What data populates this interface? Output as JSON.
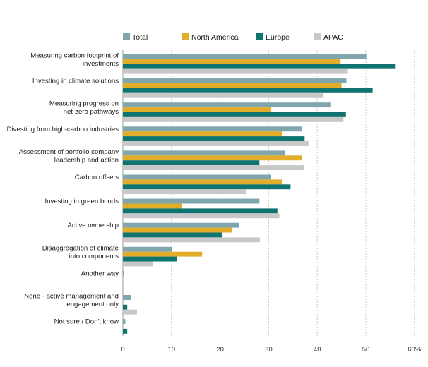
{
  "chart_data": {
    "type": "bar",
    "orientation": "horizontal",
    "title": "",
    "xlabel": "",
    "ylabel": "",
    "xlim": [
      0,
      60
    ],
    "x_ticks": [
      "0",
      "10",
      "20",
      "30",
      "40",
      "50",
      "60%"
    ],
    "grid": true,
    "legend_position": "top",
    "categories": [
      [
        "Measuring carbon footprint of",
        "investments"
      ],
      [
        "Investing in climate solutions"
      ],
      [
        "Measuring progress on",
        "net-zero pathways"
      ],
      [
        "Divesting from high-carbon industries"
      ],
      [
        "Assessment of portfolio company",
        "leadership and action"
      ],
      [
        "Carbon offsets"
      ],
      [
        "Investing in green bonds"
      ],
      [
        "Active ownership"
      ],
      [
        "Disaggregation of climate",
        "into components"
      ],
      [
        "Another way"
      ],
      [
        "None - active management and",
        "engagement only"
      ],
      [
        "Not sure / Don't know"
      ]
    ],
    "series": [
      {
        "name": "Total",
        "color": "#7fa5ad",
        "values": [
          50.1,
          46.0,
          42.7,
          36.9,
          33.3,
          30.5,
          28.1,
          23.9,
          10.1,
          0.2,
          1.7,
          0.5
        ]
      },
      {
        "name": "North America",
        "color": "#e2ad2a",
        "values": [
          44.8,
          45.0,
          30.5,
          32.7,
          36.8,
          32.7,
          12.2,
          22.5,
          16.3,
          0.0,
          0.0,
          0.0
        ]
      },
      {
        "name": "Europe",
        "color": "#0f7470",
        "values": [
          56.0,
          51.4,
          45.9,
          37.4,
          28.1,
          34.5,
          31.8,
          20.5,
          11.2,
          0.0,
          0.9,
          0.9
        ]
      },
      {
        "name": "APAC",
        "color": "#c8c8c8",
        "values": [
          46.3,
          41.3,
          45.4,
          38.2,
          37.3,
          25.4,
          32.2,
          28.2,
          6.1,
          0.0,
          2.9,
          0.0
        ]
      }
    ]
  }
}
